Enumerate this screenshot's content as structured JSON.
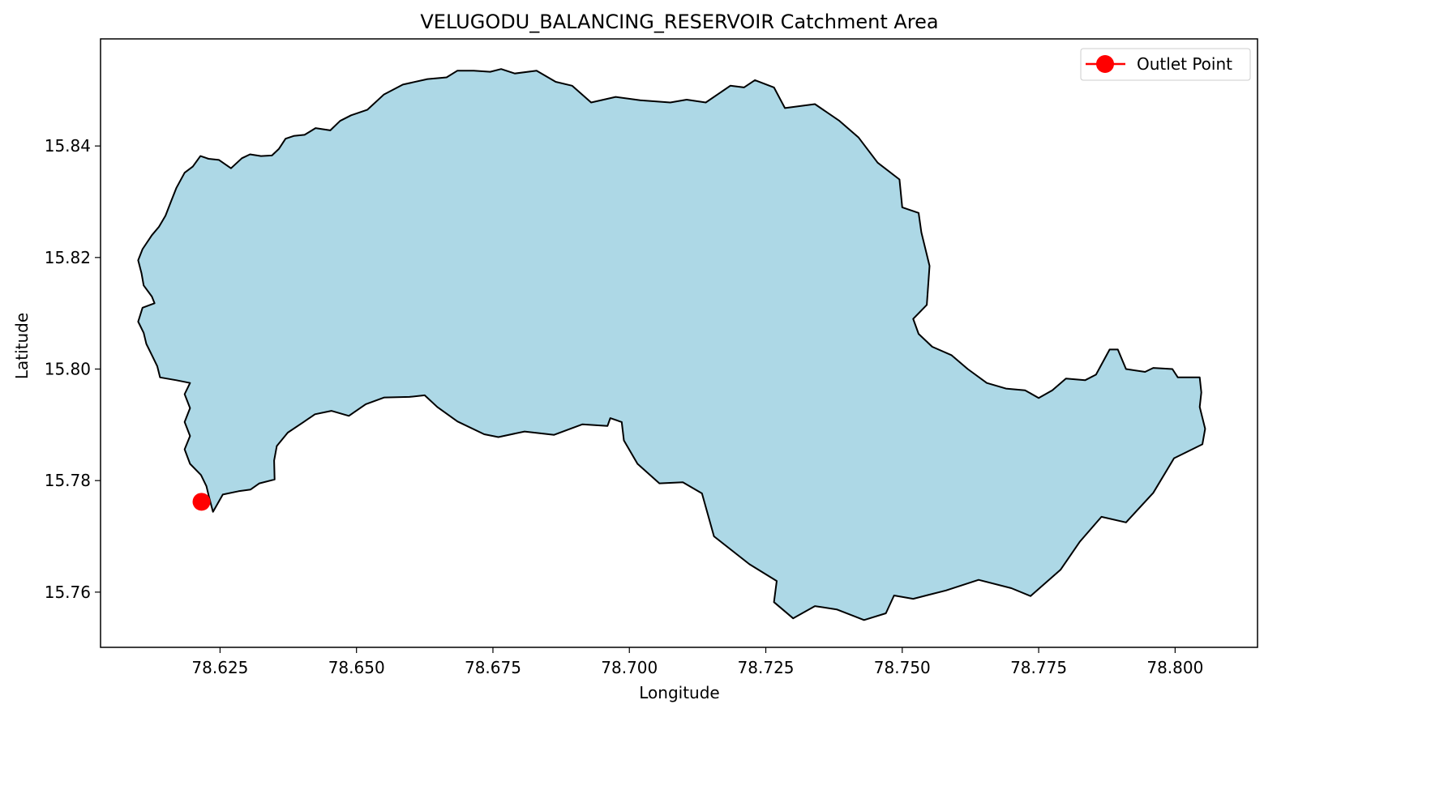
{
  "chart_data": {
    "type": "map",
    "title": "VELUGODU_BALANCING_RESERVOIR Catchment Area",
    "xlabel": "Longitude",
    "ylabel": "Latitude",
    "xlim": [
      78.6031,
      78.8151
    ],
    "ylim": [
      15.7501,
      15.8592
    ],
    "x_ticks": [
      {
        "value": 78.625,
        "label": "78.625"
      },
      {
        "value": 78.65,
        "label": "78.650"
      },
      {
        "value": 78.675,
        "label": "78.675"
      },
      {
        "value": 78.7,
        "label": "78.700"
      },
      {
        "value": 78.725,
        "label": "78.725"
      },
      {
        "value": 78.75,
        "label": "78.750"
      },
      {
        "value": 78.775,
        "label": "78.775"
      },
      {
        "value": 78.8,
        "label": "78.800"
      }
    ],
    "y_ticks": [
      {
        "value": 15.76,
        "label": "15.76"
      },
      {
        "value": 15.78,
        "label": "15.78"
      },
      {
        "value": 15.8,
        "label": "15.80"
      },
      {
        "value": 15.82,
        "label": "15.82"
      },
      {
        "value": 15.84,
        "label": "15.84"
      }
    ],
    "grid": false,
    "legend": {
      "placement": "top-right",
      "entries": [
        "Outlet Point"
      ]
    },
    "catchment": {
      "fill": "#add8e6",
      "edge": "#000000",
      "boundary": [
        [
          78.6237,
          15.7744
        ],
        [
          78.6255,
          15.7775
        ],
        [
          78.6284,
          15.7781
        ],
        [
          78.6306,
          15.7784
        ],
        [
          78.6322,
          15.7795
        ],
        [
          78.635,
          15.7802
        ],
        [
          78.6349,
          15.7836
        ],
        [
          78.6354,
          15.7862
        ],
        [
          78.6374,
          15.7886
        ],
        [
          78.6403,
          15.7905
        ],
        [
          78.6424,
          15.7919
        ],
        [
          78.6454,
          15.7925
        ],
        [
          78.6486,
          15.7916
        ],
        [
          78.6517,
          15.7937
        ],
        [
          78.6551,
          15.7949
        ],
        [
          78.6597,
          15.795
        ],
        [
          78.6625,
          15.7953
        ],
        [
          78.6648,
          15.7932
        ],
        [
          78.6685,
          15.7906
        ],
        [
          78.6734,
          15.7883
        ],
        [
          78.676,
          15.7878
        ],
        [
          78.6808,
          15.7888
        ],
        [
          78.6862,
          15.7882
        ],
        [
          78.6914,
          15.7901
        ],
        [
          78.696,
          15.7898
        ],
        [
          78.6965,
          15.7912
        ],
        [
          78.6986,
          15.7905
        ],
        [
          78.699,
          15.7872
        ],
        [
          78.7015,
          15.783
        ],
        [
          78.7055,
          15.7795
        ],
        [
          78.7098,
          15.7797
        ],
        [
          78.7133,
          15.7777
        ],
        [
          78.7155,
          15.77
        ],
        [
          78.722,
          15.765
        ],
        [
          78.727,
          15.762
        ],
        [
          78.7265,
          15.7582
        ],
        [
          78.73,
          15.7553
        ],
        [
          78.734,
          15.7575
        ],
        [
          78.738,
          15.7569
        ],
        [
          78.743,
          15.755
        ],
        [
          78.747,
          15.7562
        ],
        [
          78.7485,
          15.7594
        ],
        [
          78.752,
          15.7588
        ],
        [
          78.758,
          15.7603
        ],
        [
          78.764,
          15.7622
        ],
        [
          78.77,
          15.7607
        ],
        [
          78.7735,
          15.7593
        ],
        [
          78.779,
          15.764
        ],
        [
          78.7825,
          15.769
        ],
        [
          78.7865,
          15.7735
        ],
        [
          78.791,
          15.7725
        ],
        [
          78.796,
          15.7778
        ],
        [
          78.7998,
          15.784
        ],
        [
          78.805,
          15.7865
        ],
        [
          78.8055,
          15.7893
        ],
        [
          78.8045,
          15.7932
        ],
        [
          78.8048,
          15.7958
        ],
        [
          78.8045,
          15.7985
        ],
        [
          78.8005,
          15.7985
        ],
        [
          78.7995,
          15.8
        ],
        [
          78.796,
          15.8002
        ],
        [
          78.7945,
          15.7995
        ],
        [
          78.791,
          15.8
        ],
        [
          78.7895,
          15.8035
        ],
        [
          78.788,
          15.8035
        ],
        [
          78.7855,
          15.799
        ],
        [
          78.7835,
          15.798
        ],
        [
          78.78,
          15.7983
        ],
        [
          78.7775,
          15.7962
        ],
        [
          78.775,
          15.7948
        ],
        [
          78.7725,
          15.7962
        ],
        [
          78.769,
          15.7965
        ],
        [
          78.7655,
          15.7975
        ],
        [
          78.762,
          15.8
        ],
        [
          78.759,
          15.8025
        ],
        [
          78.7555,
          15.804
        ],
        [
          78.753,
          15.8063
        ],
        [
          78.752,
          15.809
        ],
        [
          78.7545,
          15.8115
        ],
        [
          78.755,
          15.8185
        ],
        [
          78.7535,
          15.8245
        ],
        [
          78.753,
          15.828
        ],
        [
          78.75,
          15.829
        ],
        [
          78.7495,
          15.834
        ],
        [
          78.7455,
          15.837
        ],
        [
          78.742,
          15.8415
        ],
        [
          78.7385,
          15.8445
        ],
        [
          78.734,
          15.8475
        ],
        [
          78.7285,
          15.8468
        ],
        [
          78.7265,
          15.8505
        ],
        [
          78.723,
          15.8518
        ],
        [
          78.721,
          15.8505
        ],
        [
          78.7185,
          15.8508
        ],
        [
          78.714,
          15.8478
        ],
        [
          78.7105,
          15.8483
        ],
        [
          78.7075,
          15.8478
        ],
        [
          78.702,
          15.8482
        ],
        [
          78.6975,
          15.8488
        ],
        [
          78.693,
          15.8478
        ],
        [
          78.6895,
          15.8508
        ],
        [
          78.6865,
          15.8515
        ],
        [
          78.683,
          15.8535
        ],
        [
          78.679,
          15.853
        ],
        [
          78.6765,
          15.8538
        ],
        [
          78.6745,
          15.8533
        ],
        [
          78.6715,
          15.8535
        ],
        [
          78.6685,
          15.8535
        ],
        [
          78.6665,
          15.8523
        ],
        [
          78.663,
          15.852
        ],
        [
          78.6585,
          15.851
        ],
        [
          78.655,
          15.8492
        ],
        [
          78.652,
          15.8465
        ],
        [
          78.649,
          15.8455
        ],
        [
          78.647,
          15.8445
        ],
        [
          78.6452,
          15.8428
        ],
        [
          78.6425,
          15.8432
        ],
        [
          78.6405,
          15.842
        ],
        [
          78.6385,
          15.8418
        ],
        [
          78.637,
          15.8413
        ],
        [
          78.6358,
          15.8395
        ],
        [
          78.6345,
          15.8383
        ],
        [
          78.6325,
          15.8382
        ],
        [
          78.6305,
          15.8385
        ],
        [
          78.629,
          15.8378
        ],
        [
          78.627,
          15.836
        ],
        [
          78.6248,
          15.8375
        ],
        [
          78.6229,
          15.8377
        ],
        [
          78.6214,
          15.8382
        ],
        [
          78.62,
          15.8363
        ],
        [
          78.6185,
          15.8352
        ],
        [
          78.617,
          15.8325
        ],
        [
          78.616,
          15.83
        ],
        [
          78.615,
          15.8275
        ],
        [
          78.6138,
          15.8255
        ],
        [
          78.6125,
          15.824
        ],
        [
          78.6108,
          15.8215
        ],
        [
          78.61,
          15.8195
        ],
        [
          78.6106,
          15.8172
        ],
        [
          78.611,
          15.815
        ],
        [
          78.6125,
          15.813
        ],
        [
          78.613,
          15.8118
        ],
        [
          78.6108,
          15.811
        ],
        [
          78.61,
          15.8085
        ],
        [
          78.611,
          15.8065
        ],
        [
          78.6115,
          15.8045
        ],
        [
          78.6125,
          15.8025
        ],
        [
          78.6135,
          15.8005
        ],
        [
          78.614,
          15.7985
        ],
        [
          78.617,
          15.798
        ],
        [
          78.6195,
          15.7975
        ],
        [
          78.6185,
          15.7955
        ],
        [
          78.6195,
          15.793
        ],
        [
          78.6185,
          15.7905
        ],
        [
          78.6195,
          15.788
        ],
        [
          78.6185,
          15.7856
        ],
        [
          78.6195,
          15.783
        ],
        [
          78.6215,
          15.781
        ],
        [
          78.6225,
          15.779
        ],
        [
          78.623,
          15.777
        ],
        [
          78.6237,
          15.7744
        ]
      ]
    },
    "outlet_point": {
      "label": "Outlet Point",
      "x": 78.6216,
      "y": 15.7762,
      "color": "#ff0000"
    }
  }
}
